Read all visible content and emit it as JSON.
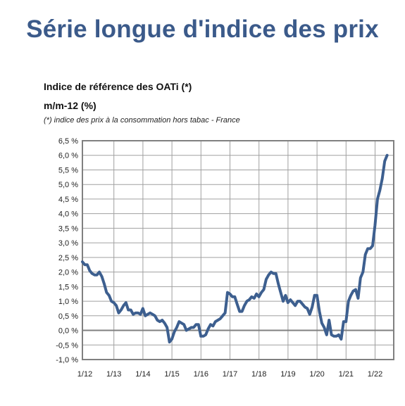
{
  "page": {
    "title": "Série longue d'indice des prix"
  },
  "chart_data": {
    "type": "line",
    "title": "Indice de référence des OATi (*)",
    "subtitle": "m/m-12 (%)",
    "note": "(*) indice des prix à la consommation hors tabac - France",
    "xlabel": "",
    "ylabel": "",
    "ylim": [
      -1.0,
      6.5
    ],
    "xlim": [
      "2012-01",
      "2022-07"
    ],
    "y_ticks": [
      "6,5 %",
      "6,0 %",
      "5,5 %",
      "5,0 %",
      "4,5 %",
      "4,0 %",
      "3,5 %",
      "3,0 %",
      "2,5 %",
      "2,0 %",
      "1,5 %",
      "1,0 %",
      "0,5 %",
      "0,0 %",
      "-0,5 %",
      "-1,0 %"
    ],
    "x_ticks": [
      "1/12",
      "1/13",
      "1/14",
      "1/15",
      "1/16",
      "1/17",
      "1/18",
      "1/19",
      "1/20",
      "1/21",
      "1/22"
    ],
    "grid": true,
    "colors": {
      "line": "#3d5f8f",
      "grid": "#a0a0a0",
      "frame": "#808080",
      "zero": "#808080"
    },
    "series": [
      {
        "name": "",
        "x": [
          "2012-01",
          "2012-02",
          "2012-03",
          "2012-04",
          "2012-05",
          "2012-06",
          "2012-07",
          "2012-08",
          "2012-09",
          "2012-10",
          "2012-11",
          "2012-12",
          "2013-01",
          "2013-02",
          "2013-03",
          "2013-04",
          "2013-05",
          "2013-06",
          "2013-07",
          "2013-08",
          "2013-09",
          "2013-10",
          "2013-11",
          "2013-12",
          "2014-01",
          "2014-02",
          "2014-03",
          "2014-04",
          "2014-05",
          "2014-06",
          "2014-07",
          "2014-08",
          "2014-09",
          "2014-10",
          "2014-11",
          "2014-12",
          "2015-01",
          "2015-02",
          "2015-03",
          "2015-04",
          "2015-05",
          "2015-06",
          "2015-07",
          "2015-08",
          "2015-09",
          "2015-10",
          "2015-11",
          "2015-12",
          "2016-01",
          "2016-02",
          "2016-03",
          "2016-04",
          "2016-05",
          "2016-06",
          "2016-07",
          "2016-08",
          "2016-09",
          "2016-10",
          "2016-11",
          "2016-12",
          "2017-01",
          "2017-02",
          "2017-03",
          "2017-04",
          "2017-05",
          "2017-06",
          "2017-07",
          "2017-08",
          "2017-09",
          "2017-10",
          "2017-11",
          "2017-12",
          "2018-01",
          "2018-02",
          "2018-03",
          "2018-04",
          "2018-05",
          "2018-06",
          "2018-07",
          "2018-08",
          "2018-09",
          "2018-10",
          "2018-11",
          "2018-12",
          "2019-01",
          "2019-02",
          "2019-03",
          "2019-04",
          "2019-05",
          "2019-06",
          "2019-07",
          "2019-08",
          "2019-09",
          "2019-10",
          "2019-11",
          "2019-12",
          "2020-01",
          "2020-02",
          "2020-03",
          "2020-04",
          "2020-05",
          "2020-06",
          "2020-07",
          "2020-08",
          "2020-09",
          "2020-10",
          "2020-11",
          "2020-12",
          "2021-01",
          "2021-02",
          "2021-03",
          "2021-04",
          "2021-05",
          "2021-06",
          "2021-07",
          "2021-08",
          "2021-09",
          "2021-10",
          "2021-11",
          "2021-12",
          "2022-01",
          "2022-02",
          "2022-03",
          "2022-04",
          "2022-05",
          "2022-06",
          "2022-07"
        ],
        "values": [
          2.35,
          2.25,
          2.25,
          2.05,
          1.95,
          1.9,
          1.9,
          2.0,
          1.85,
          1.6,
          1.3,
          1.2,
          1.0,
          0.95,
          0.85,
          0.6,
          0.7,
          0.85,
          0.95,
          0.7,
          0.7,
          0.55,
          0.6,
          0.6,
          0.55,
          0.75,
          0.5,
          0.55,
          0.6,
          0.55,
          0.5,
          0.35,
          0.3,
          0.35,
          0.25,
          0.1,
          -0.4,
          -0.3,
          -0.05,
          0.1,
          0.3,
          0.25,
          0.2,
          0.0,
          0.05,
          0.1,
          0.1,
          0.2,
          0.2,
          -0.2,
          -0.2,
          -0.15,
          0.05,
          0.2,
          0.15,
          0.3,
          0.35,
          0.4,
          0.5,
          0.6,
          1.3,
          1.25,
          1.15,
          1.15,
          0.9,
          0.65,
          0.65,
          0.85,
          1.0,
          1.05,
          1.15,
          1.1,
          1.25,
          1.15,
          1.3,
          1.4,
          1.75,
          1.9,
          2.0,
          1.95,
          1.95,
          1.6,
          1.3,
          1.0,
          1.2,
          0.95,
          1.05,
          0.95,
          0.85,
          1.0,
          1.0,
          0.9,
          0.8,
          0.75,
          0.55,
          0.8,
          1.2,
          1.2,
          0.65,
          0.25,
          0.1,
          -0.15,
          0.35,
          -0.15,
          -0.2,
          -0.2,
          -0.15,
          -0.3,
          0.3,
          0.3,
          1.0,
          1.2,
          1.35,
          1.4,
          1.1,
          1.8,
          2.0,
          2.6,
          2.8,
          2.8,
          2.9,
          3.6,
          4.5,
          4.8,
          5.2,
          5.8,
          6.0
        ]
      }
    ]
  }
}
